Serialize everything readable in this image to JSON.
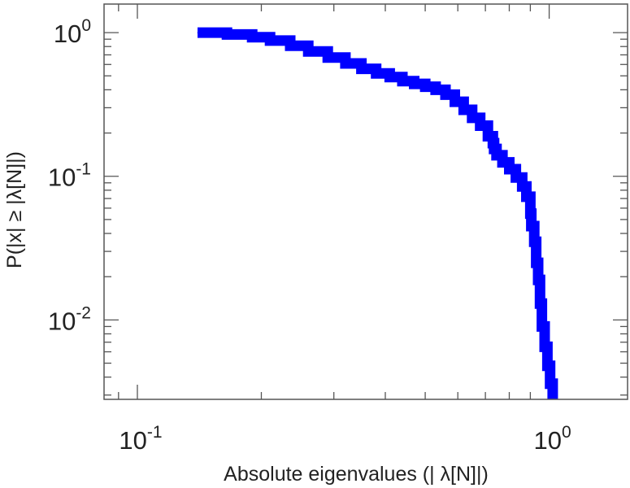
{
  "chart_data": {
    "type": "line",
    "title": "",
    "xlabel": "Absolute eigenvalues (|     λ[N]|)",
    "ylabel": "P(|x|  ≥ |λ[N]|)",
    "x_scale": "log",
    "y_scale": "log",
    "xlim": [
      0.083,
      1.55
    ],
    "ylim": [
      0.0028,
      1.58
    ],
    "x_ticks": [
      {
        "value": 0.1,
        "base": "10",
        "exp": "-1"
      },
      {
        "value": 1.0,
        "base": "10",
        "exp": "0"
      }
    ],
    "y_ticks": [
      {
        "value": 1.0,
        "base": "10",
        "exp": "0"
      },
      {
        "value": 0.1,
        "base": "10",
        "exp": "-1"
      },
      {
        "value": 0.01,
        "base": "10",
        "exp": "-2"
      }
    ],
    "grid": false,
    "legend": "none",
    "series": [
      {
        "color": "#0000ff",
        "style": "thick-step",
        "x": [
          0.14,
          0.165,
          0.19,
          0.21,
          0.235,
          0.26,
          0.29,
          0.32,
          0.35,
          0.38,
          0.41,
          0.44,
          0.47,
          0.5,
          0.53,
          0.56,
          0.59,
          0.62,
          0.65,
          0.68,
          0.71,
          0.73,
          0.735,
          0.745,
          0.77,
          0.8,
          0.83,
          0.86,
          0.88,
          0.9,
          0.905,
          0.92,
          0.93,
          0.94,
          0.95,
          0.96,
          0.975,
          0.99,
          1.005,
          1.02
        ],
        "y": [
          1.0,
          0.97,
          0.93,
          0.88,
          0.81,
          0.74,
          0.67,
          0.61,
          0.56,
          0.52,
          0.49,
          0.46,
          0.44,
          0.42,
          0.4,
          0.37,
          0.33,
          0.29,
          0.255,
          0.225,
          0.19,
          0.17,
          0.155,
          0.14,
          0.125,
          0.112,
          0.098,
          0.085,
          0.072,
          0.055,
          0.045,
          0.035,
          0.025,
          0.019,
          0.013,
          0.009,
          0.0065,
          0.0048,
          0.0036,
          0.0029
        ]
      }
    ]
  }
}
